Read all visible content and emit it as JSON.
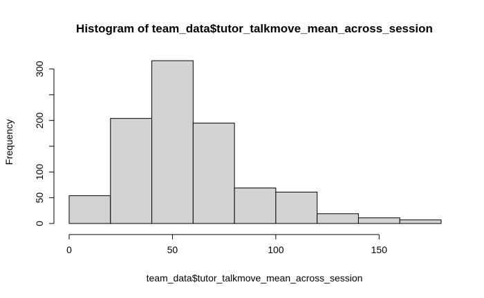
{
  "chart_data": {
    "type": "bar",
    "title": "Histogram of team_data$tutor_talkmove_mean_across_session",
    "xlabel": "team_data$tutor_talkmove_mean_across_session",
    "ylabel": "Frequency",
    "bins": [
      {
        "start": 0,
        "end": 20,
        "value": 54
      },
      {
        "start": 20,
        "end": 40,
        "value": 204
      },
      {
        "start": 40,
        "end": 60,
        "value": 316
      },
      {
        "start": 60,
        "end": 80,
        "value": 195
      },
      {
        "start": 80,
        "end": 100,
        "value": 69
      },
      {
        "start": 100,
        "end": 120,
        "value": 61
      },
      {
        "start": 120,
        "end": 140,
        "value": 19
      },
      {
        "start": 140,
        "end": 160,
        "value": 11
      },
      {
        "start": 160,
        "end": 180,
        "value": 7
      }
    ],
    "xlim": [
      0,
      180
    ],
    "ylim": [
      0,
      316
    ],
    "x_ticks": [
      0,
      50,
      100,
      150
    ],
    "y_ticks": [
      0,
      50,
      100,
      200,
      300
    ],
    "y_tick_marks": [
      0,
      50,
      100,
      150,
      200,
      250,
      300
    ],
    "bar_color": "#d3d3d3",
    "grid": false,
    "legend": "none"
  }
}
